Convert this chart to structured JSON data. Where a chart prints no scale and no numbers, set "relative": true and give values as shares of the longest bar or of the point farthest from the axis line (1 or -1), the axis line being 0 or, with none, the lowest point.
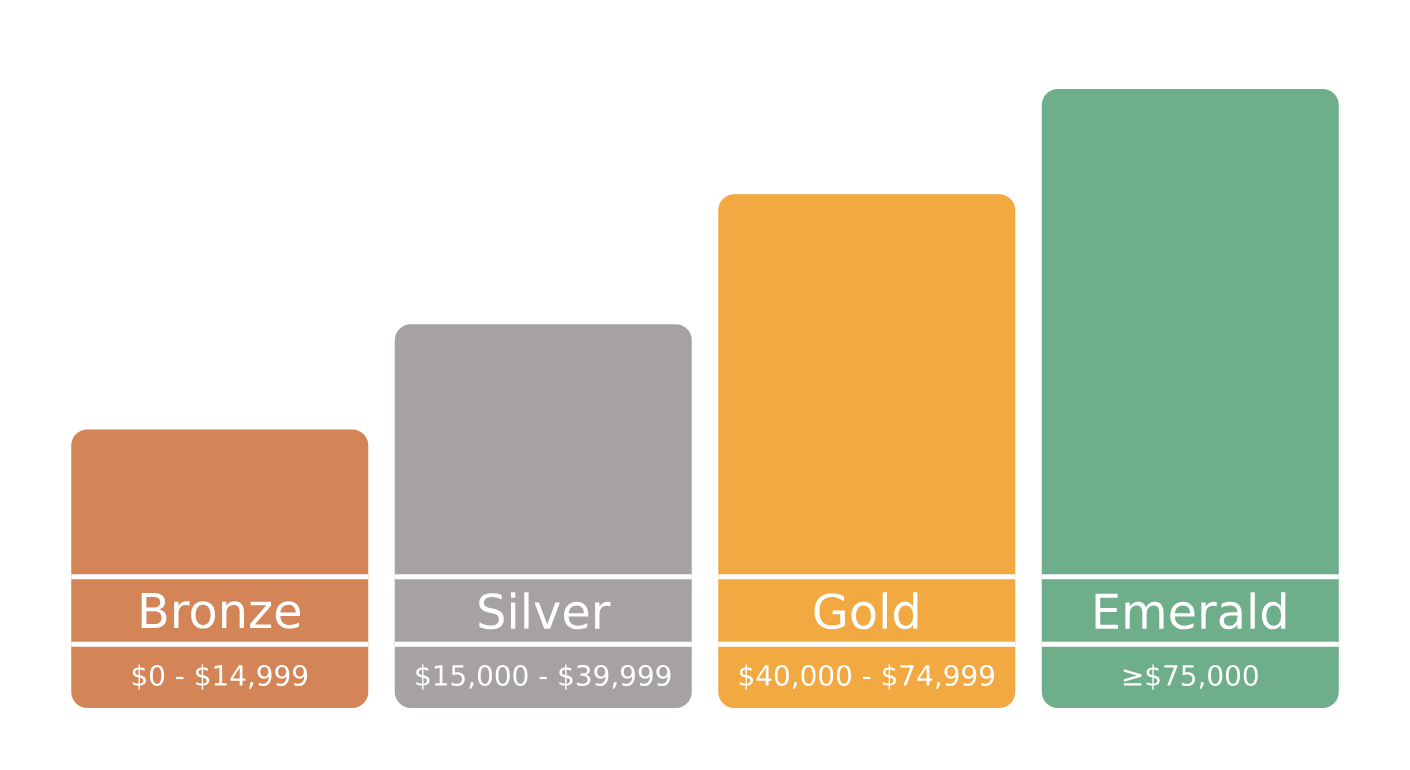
{
  "chart_data": {
    "type": "bar",
    "relative": true,
    "categories": [
      "Bronze",
      "Silver",
      "Gold",
      "Emerald"
    ],
    "values": [
      0.45,
      0.62,
      0.83,
      1
    ],
    "colors": [
      "#d38557",
      "#a6a2a3",
      "#f2a941",
      "#6fae8b"
    ],
    "annotations": [
      "$0 - $14,999",
      "$15,000 - $39,999",
      "$40,000 - $74,999",
      "≥$75,000"
    ]
  }
}
